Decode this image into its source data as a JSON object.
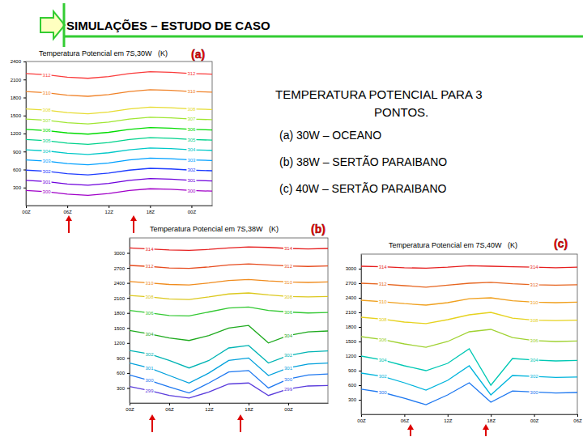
{
  "header": {
    "title": "SIMULAÇÕES – ESTUDO DE CASO"
  },
  "text": {
    "heading": [
      "TEMPERATURA POTENCIAL PARA 3",
      "PONTOS."
    ],
    "items": [
      "(a) 30W – OCEANO",
      "(b) 38W – SERTÃO PARAIBANO",
      "(c) 40W – SERTÃO PARAIBANO"
    ]
  },
  "chart_data": [
    {
      "type": "line",
      "title": "Temperatura Potencial em 7S,30W   (K)",
      "annotation": "(a)",
      "grid": false,
      "x": [
        0,
        3,
        6,
        9,
        12,
        15,
        18,
        21,
        24,
        27
      ],
      "xlim": [
        0,
        27
      ],
      "xticks": [
        {
          "value": 0,
          "label": "00Z"
        },
        {
          "value": 6,
          "label": "06Z"
        },
        {
          "value": 12,
          "label": "12Z"
        },
        {
          "value": 18,
          "label": "18Z"
        },
        {
          "value": 24,
          "label": "00Z"
        }
      ],
      "ylim": [
        0,
        2400
      ],
      "yticks": [
        300,
        600,
        900,
        1200,
        1500,
        1800,
        2100,
        2400
      ],
      "series": [
        {
          "name": "300",
          "color": "#a000c8",
          "values": [
            250,
            230,
            190,
            170,
            200,
            250,
            280,
            270,
            250,
            240
          ]
        },
        {
          "name": "301",
          "color": "#6e00dc",
          "values": [
            420,
            400,
            360,
            340,
            370,
            420,
            450,
            440,
            420,
            410
          ]
        },
        {
          "name": "302",
          "color": "#1e3cff",
          "values": [
            590,
            570,
            530,
            510,
            540,
            590,
            620,
            610,
            590,
            580
          ]
        },
        {
          "name": "303",
          "color": "#00a0ff",
          "values": [
            760,
            740,
            700,
            680,
            710,
            760,
            790,
            780,
            760,
            750
          ]
        },
        {
          "name": "304",
          "color": "#00c8c8",
          "values": [
            930,
            910,
            870,
            850,
            880,
            930,
            960,
            950,
            930,
            920
          ]
        },
        {
          "name": "305",
          "color": "#00d28c",
          "values": [
            1100,
            1080,
            1040,
            1020,
            1050,
            1100,
            1130,
            1120,
            1100,
            1090
          ]
        },
        {
          "name": "306",
          "color": "#00dc00",
          "values": [
            1270,
            1250,
            1210,
            1190,
            1220,
            1270,
            1300,
            1290,
            1270,
            1260
          ]
        },
        {
          "name": "307",
          "color": "#a0e632",
          "values": [
            1440,
            1420,
            1380,
            1360,
            1390,
            1440,
            1470,
            1460,
            1440,
            1430
          ]
        },
        {
          "name": "308",
          "color": "#e6dc32",
          "values": [
            1610,
            1590,
            1550,
            1530,
            1560,
            1610,
            1640,
            1630,
            1610,
            1600
          ]
        },
        {
          "name": "310",
          "color": "#f08228",
          "values": [
            1900,
            1880,
            1840,
            1820,
            1850,
            1900,
            1930,
            1920,
            1900,
            1890
          ]
        },
        {
          "name": "312",
          "color": "#fa3c3c",
          "values": [
            2200,
            2180,
            2140,
            2120,
            2150,
            2200,
            2230,
            2220,
            2200,
            2190
          ]
        }
      ]
    },
    {
      "type": "line",
      "title": "Temperatura Potencial em 7S,38W   (K)",
      "annotation": "(b)",
      "grid": false,
      "x": [
        0,
        3,
        6,
        9,
        12,
        15,
        18,
        21,
        24,
        27,
        30
      ],
      "xlim": [
        0,
        30
      ],
      "xticks": [
        {
          "value": 0,
          "label": "00Z"
        },
        {
          "value": 6,
          "label": "06Z"
        },
        {
          "value": 12,
          "label": "12Z"
        },
        {
          "value": 18,
          "label": "18Z"
        },
        {
          "value": 24,
          "label": "00Z"
        }
      ],
      "ylim": [
        0,
        3300
      ],
      "yticks": [
        300,
        600,
        900,
        1200,
        1500,
        1800,
        2100,
        2400,
        2700,
        3000
      ],
      "series": [
        {
          "name": "299",
          "color": "#5a3cdc",
          "values": [
            330,
            250,
            150,
            100,
            220,
            380,
            400,
            150,
            280,
            340,
            350
          ]
        },
        {
          "name": "300",
          "color": "#1e78f0",
          "values": [
            560,
            450,
            320,
            200,
            400,
            620,
            650,
            300,
            480,
            560,
            580
          ]
        },
        {
          "name": "301",
          "color": "#00a0dc",
          "values": [
            800,
            700,
            550,
            400,
            600,
            850,
            900,
            550,
            700,
            780,
            800
          ]
        },
        {
          "name": "302",
          "color": "#00b4b4",
          "values": [
            1050,
            980,
            850,
            700,
            850,
            1100,
            1150,
            800,
            950,
            1020,
            1040
          ]
        },
        {
          "name": "304",
          "color": "#1eaa1e",
          "values": [
            1450,
            1380,
            1300,
            1250,
            1350,
            1500,
            1550,
            1200,
            1350,
            1420,
            1440
          ]
        },
        {
          "name": "306",
          "color": "#32c832",
          "values": [
            1850,
            1800,
            1750,
            1740,
            1820,
            1900,
            1920,
            1850,
            1820,
            1800,
            1810
          ]
        },
        {
          "name": "308",
          "color": "#dcc81e",
          "values": [
            2150,
            2120,
            2080,
            2070,
            2120,
            2180,
            2200,
            2160,
            2130,
            2120,
            2130
          ]
        },
        {
          "name": "310",
          "color": "#f08c1e",
          "values": [
            2430,
            2400,
            2370,
            2360,
            2400,
            2450,
            2470,
            2440,
            2420,
            2410,
            2420
          ]
        },
        {
          "name": "312",
          "color": "#e64b1e",
          "values": [
            2750,
            2730,
            2700,
            2690,
            2720,
            2760,
            2780,
            2760,
            2740,
            2730,
            2740
          ]
        },
        {
          "name": "314",
          "color": "#e61e1e",
          "values": [
            3100,
            3080,
            3060,
            3050,
            3070,
            3100,
            3120,
            3110,
            3090,
            3080,
            3090
          ]
        }
      ]
    },
    {
      "type": "line",
      "title": "Temperatura Potencial em 7S,40W   (K)",
      "annotation": "(c)",
      "grid": false,
      "x": [
        0,
        3,
        6,
        9,
        12,
        15,
        18,
        21,
        24,
        27,
        30
      ],
      "xlim": [
        0,
        30
      ],
      "xticks": [
        {
          "value": 0,
          "label": "00Z"
        },
        {
          "value": 6,
          "label": "06Z"
        },
        {
          "value": 12,
          "label": "12Z"
        },
        {
          "value": 18,
          "label": "18Z"
        },
        {
          "value": 24,
          "label": "00Z"
        },
        {
          "value": 30,
          "label": "06Z"
        }
      ],
      "ylim": [
        0,
        3300
      ],
      "yticks": [
        300,
        600,
        900,
        1200,
        1500,
        1800,
        2100,
        2400,
        2700,
        3000
      ],
      "series": [
        {
          "name": "300",
          "color": "#1e78f0",
          "values": [
            520,
            450,
            330,
            200,
            400,
            650,
            250,
            480,
            460,
            440,
            450
          ]
        },
        {
          "name": "302",
          "color": "#00b4dc",
          "values": [
            850,
            780,
            650,
            500,
            700,
            1000,
            400,
            800,
            780,
            760,
            770
          ]
        },
        {
          "name": "304",
          "color": "#00c8b4",
          "values": [
            1200,
            1120,
            1000,
            900,
            1050,
            1350,
            600,
            1150,
            1120,
            1100,
            1110
          ]
        },
        {
          "name": "306",
          "color": "#a0d232",
          "values": [
            1600,
            1540,
            1450,
            1380,
            1500,
            1700,
            1750,
            1580,
            1520,
            1500,
            1510
          ]
        },
        {
          "name": "308",
          "color": "#e6d21e",
          "values": [
            2000,
            1960,
            1900,
            1870,
            1950,
            2050,
            2100,
            1980,
            1940,
            1930,
            1940
          ]
        },
        {
          "name": "310",
          "color": "#f0a01e",
          "values": [
            2350,
            2320,
            2280,
            2250,
            2300,
            2380,
            2400,
            2340,
            2310,
            2300,
            2310
          ]
        },
        {
          "name": "312",
          "color": "#e6641e",
          "values": [
            2700,
            2680,
            2650,
            2620,
            2660,
            2700,
            2720,
            2690,
            2670,
            2660,
            2670
          ]
        },
        {
          "name": "314",
          "color": "#e61e1e",
          "values": [
            3050,
            3040,
            3020,
            3010,
            3030,
            3060,
            3050,
            3040,
            3030,
            3020,
            3030
          ]
        }
      ]
    }
  ]
}
